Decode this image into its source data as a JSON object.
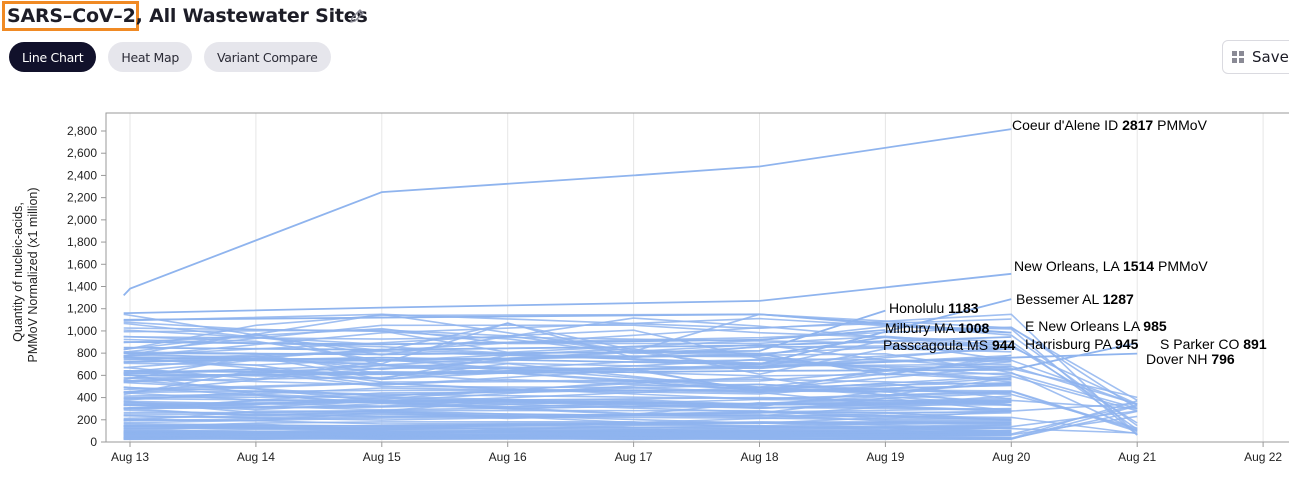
{
  "header": {
    "title_highlight": "SARS–CoV–2,",
    "title_rest": " All Wastewater Sites",
    "edit_icon": "pencil-icon"
  },
  "tabs": [
    {
      "label": "Line Chart",
      "active": true
    },
    {
      "label": "Heat Map",
      "active": false
    },
    {
      "label": "Variant Compare",
      "active": false
    }
  ],
  "toolbar": {
    "save_label": "Save",
    "save_icon": "grid-icon"
  },
  "colors": {
    "line": "#8fb4ee",
    "title_highlight_border": "#f08a24",
    "active_tab": "#11112b"
  },
  "chart_data": {
    "type": "line",
    "ylabel_line1": "Quantity of nucleic-acids,",
    "ylabel_line2": "PMMoV Normalized (x1 million)",
    "x": [
      "Aug 13",
      "Aug 14",
      "Aug 15",
      "Aug 16",
      "Aug 17",
      "Aug 18",
      "Aug 19",
      "Aug 20",
      "Aug 21",
      "Aug 22"
    ],
    "ylim": [
      0,
      2800
    ],
    "yticks": [
      0,
      200,
      400,
      600,
      800,
      1000,
      1200,
      1400,
      1600,
      1800,
      2000,
      2200,
      2400,
      2600,
      2800
    ],
    "yticks_labels": [
      "0",
      "200",
      "400",
      "600",
      "800",
      "1,000",
      "1,200",
      "1,400",
      "1,600",
      "1,800",
      "2,000",
      "2,200",
      "2,400",
      "2,600",
      "2,800"
    ],
    "grid": "vertical",
    "highlighted_series": [
      {
        "label": "Coeur d'Alene ID",
        "value_text": "2817",
        "unit": " PMMoV",
        "points": [
          [
            12.95,
            1320
          ],
          [
            13.0,
            1380
          ],
          [
            15,
            2250
          ],
          [
            17,
            2400
          ],
          [
            18,
            2480
          ],
          [
            20,
            2817
          ]
        ],
        "label_at": [
          20,
          2817
        ]
      },
      {
        "label": "New Orleans, LA",
        "value_text": "1514",
        "unit": " PMMoV",
        "points": [
          [
            12.95,
            1160
          ],
          [
            15,
            1210
          ],
          [
            18,
            1270
          ],
          [
            20,
            1514
          ]
        ],
        "label_at": [
          20,
          1514
        ]
      },
      {
        "label": "Bessemer AL",
        "value_text": "1287",
        "unit": "",
        "points": [
          [
            12.95,
            720
          ],
          [
            15,
            760
          ],
          [
            18,
            700
          ],
          [
            20,
            1287
          ]
        ],
        "label_at": [
          20,
          1287
        ]
      },
      {
        "label": "Honolulu",
        "value_text": "1183",
        "unit": "",
        "points": [
          [
            12.95,
            800
          ],
          [
            15,
            790
          ],
          [
            18,
            820
          ],
          [
            19,
            1183
          ]
        ],
        "label_at": [
          19,
          1183
        ]
      },
      {
        "label": "Milbury MA",
        "value_text": "1008",
        "unit": "",
        "points": [
          [
            12.95,
            900
          ],
          [
            15,
            880
          ],
          [
            18,
            920
          ],
          [
            19,
            1008
          ]
        ],
        "label_at": [
          19,
          1008
        ]
      },
      {
        "label": "E New Orleans  LA",
        "value_text": "985",
        "unit": "",
        "points": [
          [
            12.95,
            1100
          ],
          [
            15,
            1120
          ],
          [
            18,
            1150
          ],
          [
            20,
            985
          ]
        ],
        "label_at": [
          20,
          985
        ]
      },
      {
        "label": "Passcagoula MS",
        "value_text": "944",
        "unit": "",
        "points": [
          [
            12.95,
            760
          ],
          [
            15,
            740
          ],
          [
            18,
            780
          ],
          [
            19,
            944
          ]
        ],
        "label_at": [
          19,
          944
        ]
      },
      {
        "label": "Harrisburg PA",
        "value_text": "945",
        "unit": "",
        "points": [
          [
            12.95,
            850
          ],
          [
            15,
            830
          ],
          [
            18,
            870
          ],
          [
            20,
            945
          ]
        ],
        "label_at": [
          20,
          945
        ]
      },
      {
        "label": "S Parker CO",
        "value_text": "891",
        "unit": "",
        "points": [
          [
            12.95,
            600
          ],
          [
            15,
            610
          ],
          [
            18,
            640
          ],
          [
            20,
            650
          ],
          [
            21,
            891
          ]
        ],
        "label_at": [
          21,
          891
        ]
      },
      {
        "label": "Dover NH",
        "value_text": "796",
        "unit": "",
        "points": [
          [
            12.95,
            640
          ],
          [
            15,
            620
          ],
          [
            18,
            680
          ],
          [
            20,
            760
          ],
          [
            21,
            796
          ]
        ],
        "label_at": [
          21,
          796
        ]
      }
    ],
    "background_series_count": 130,
    "background_series_range": [
      30,
      1150
    ]
  }
}
